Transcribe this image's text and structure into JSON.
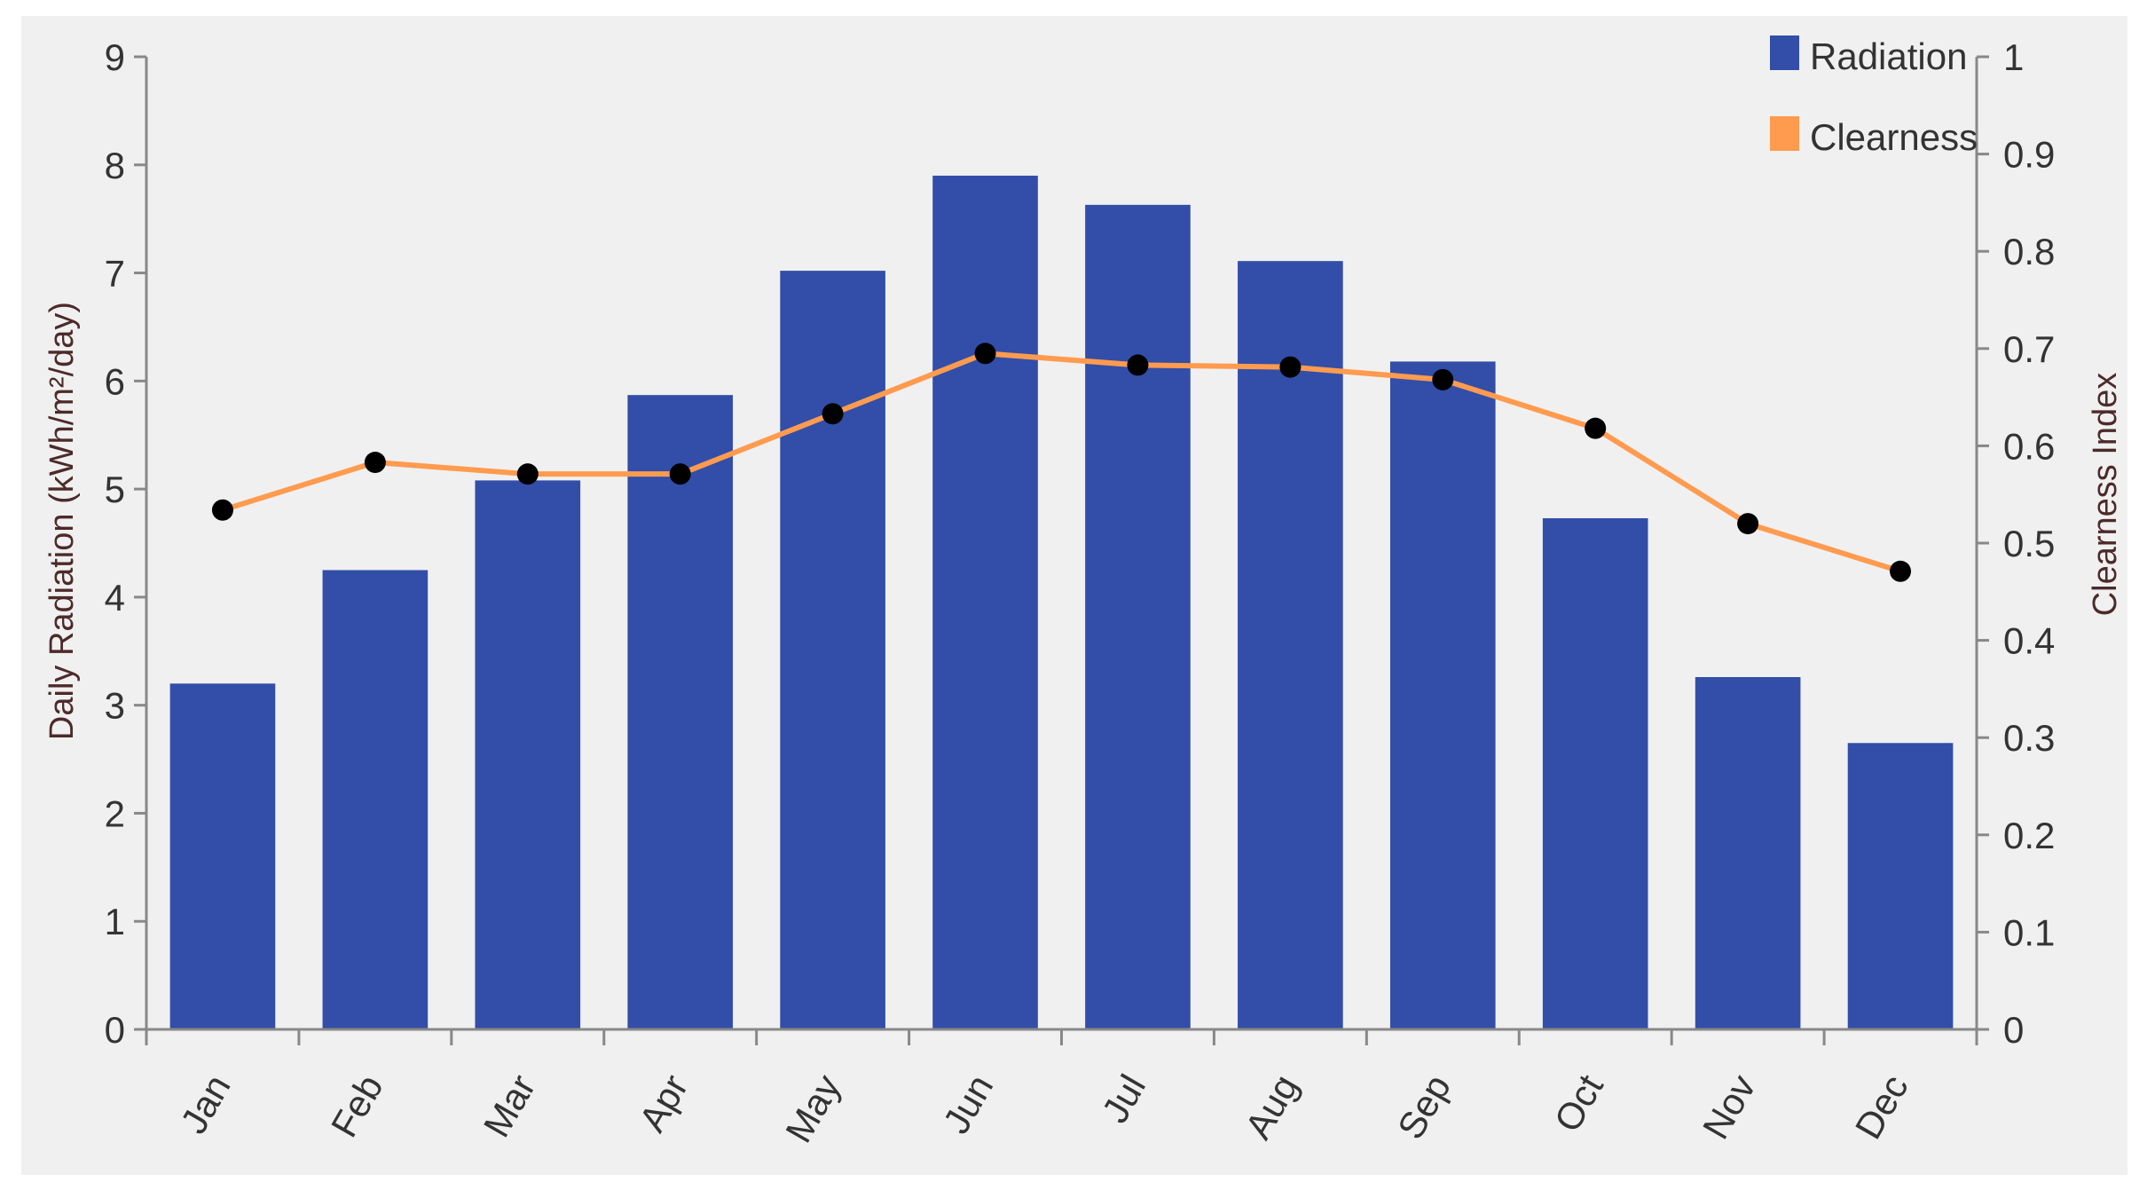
{
  "chart_data": {
    "type": "bar",
    "categories": [
      "Jan",
      "Feb",
      "Mar",
      "Apr",
      "May",
      "Jun",
      "Jul",
      "Aug",
      "Sep",
      "Oct",
      "Nov",
      "Dec"
    ],
    "series": [
      {
        "name": "Radiation",
        "type": "bar",
        "axis": "left",
        "color": "#324ea8",
        "values": [
          3.2,
          4.25,
          5.08,
          5.87,
          7.02,
          7.9,
          7.63,
          7.11,
          6.18,
          4.73,
          3.26,
          2.65
        ]
      },
      {
        "name": "Clearness",
        "type": "line",
        "axis": "right",
        "color": "#ff9b4f",
        "marker_color": "#000000",
        "values": [
          0.534,
          0.583,
          0.571,
          0.571,
          0.633,
          0.695,
          0.683,
          0.681,
          0.668,
          0.618,
          0.52,
          0.471
        ]
      }
    ],
    "ylabel": "Daily Radiation (kWh/m²/day)",
    "y2label": "Clearness Index",
    "xlabel": "",
    "ylim": [
      0,
      9
    ],
    "y2lim": [
      0,
      1
    ],
    "yticks": [
      "0",
      "1",
      "2",
      "3",
      "4",
      "5",
      "6",
      "7",
      "8",
      "9"
    ],
    "y2ticks": [
      "0",
      "0.1",
      "0.2",
      "0.3",
      "0.4",
      "0.5",
      "0.6",
      "0.7",
      "0.8",
      "0.9",
      "1"
    ],
    "grid": false,
    "legend_position": "top-right",
    "background_color": "#f0f0f0"
  }
}
